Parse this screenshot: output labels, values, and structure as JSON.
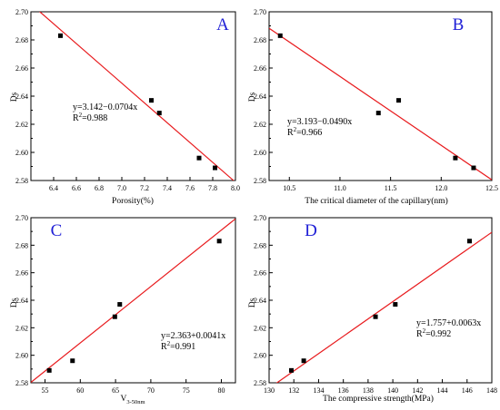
{
  "chart_data": [
    {
      "type": "scatter",
      "panel_letter": "A",
      "xlabel": "Porosity(%)",
      "ylabel": "Ds",
      "xlim": [
        6.2,
        8.0
      ],
      "ylim": [
        2.58,
        2.7
      ],
      "xticks": [
        "6.4",
        "6.6",
        "6.8",
        "7.0",
        "7.2",
        "7.4",
        "7.6",
        "7.8",
        "8.0"
      ],
      "yticks": [
        "2.58",
        "2.60",
        "2.62",
        "2.64",
        "2.66",
        "2.68",
        "2.70"
      ],
      "points": [
        {
          "x": 6.46,
          "y": 2.683
        },
        {
          "x": 7.26,
          "y": 2.637
        },
        {
          "x": 7.33,
          "y": 2.628
        },
        {
          "x": 7.68,
          "y": 2.596
        },
        {
          "x": 7.82,
          "y": 2.589
        }
      ],
      "fit": {
        "intercept": 3.142,
        "slope": -0.0704
      },
      "equation": "y=3.142−0.0704x",
      "r2_label": "R",
      "r2_value": "=0.988"
    },
    {
      "type": "scatter",
      "panel_letter": "B",
      "xlabel": "The critical diameter of the capillary(nm)",
      "ylabel": "Ds",
      "xlim": [
        10.3,
        12.5
      ],
      "ylim": [
        2.58,
        2.7
      ],
      "xticks": [
        "10.5",
        "11.0",
        "11.5",
        "12.0",
        "12.5"
      ],
      "yticks": [
        "2.58",
        "2.60",
        "2.62",
        "2.64",
        "2.66",
        "2.68",
        "2.70"
      ],
      "points": [
        {
          "x": 10.41,
          "y": 2.683
        },
        {
          "x": 11.38,
          "y": 2.628
        },
        {
          "x": 11.58,
          "y": 2.637
        },
        {
          "x": 12.14,
          "y": 2.596
        },
        {
          "x": 12.32,
          "y": 2.589
        }
      ],
      "fit": {
        "intercept": 3.193,
        "slope": -0.049
      },
      "equation": "y=3.193−0.0490x",
      "r2_label": "R",
      "r2_value": "=0.966"
    },
    {
      "type": "scatter",
      "panel_letter": "C",
      "xlabel": "V",
      "xlabel_sub": "3-50nm",
      "ylabel": "Ds",
      "xlim": [
        53,
        82
      ],
      "ylim": [
        2.58,
        2.7
      ],
      "xticks": [
        "55",
        "60",
        "65",
        "70",
        "75",
        "80"
      ],
      "yticks": [
        "2.58",
        "2.60",
        "2.62",
        "2.64",
        "2.66",
        "2.68",
        "2.70"
      ],
      "points": [
        {
          "x": 55.6,
          "y": 2.589
        },
        {
          "x": 58.9,
          "y": 2.596
        },
        {
          "x": 64.9,
          "y": 2.628
        },
        {
          "x": 65.6,
          "y": 2.637
        },
        {
          "x": 79.7,
          "y": 2.683
        }
      ],
      "fit": {
        "intercept": 2.363,
        "slope": 0.0041
      },
      "equation": "y=2.363+0.0041x",
      "r2_label": "R",
      "r2_value": "=0.991"
    },
    {
      "type": "scatter",
      "panel_letter": "D",
      "xlabel": "The compressive strength(MPa)",
      "ylabel": "Ds",
      "xlim": [
        130,
        148
      ],
      "ylim": [
        2.58,
        2.7
      ],
      "xticks": [
        "130",
        "132",
        "134",
        "136",
        "138",
        "140",
        "142",
        "144",
        "146",
        "148"
      ],
      "yticks": [
        "2.58",
        "2.60",
        "2.62",
        "2.64",
        "2.66",
        "2.68",
        "2.70"
      ],
      "points": [
        {
          "x": 131.8,
          "y": 2.589
        },
        {
          "x": 132.8,
          "y": 2.596
        },
        {
          "x": 138.6,
          "y": 2.628
        },
        {
          "x": 140.2,
          "y": 2.637
        },
        {
          "x": 146.2,
          "y": 2.683
        }
      ],
      "fit": {
        "intercept": 1.757,
        "slope": 0.0063
      },
      "equation": "y=1.757+0.0063x",
      "r2_label": "R",
      "r2_value": "=0.992"
    }
  ]
}
